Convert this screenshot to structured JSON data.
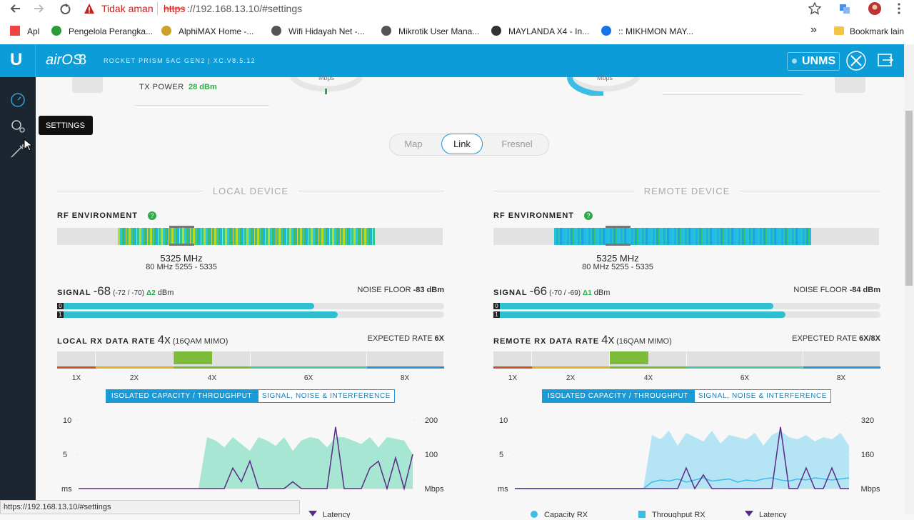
{
  "browser": {
    "security": "Tidak aman",
    "url_scheme": "https",
    "url_rest": "://192.168.13.10/#settings",
    "bookmarks": [
      "Apl",
      "Pengelola Perangka...",
      "AlphiMAX Home -...",
      "Wifi Hidayah Net -...",
      "Mikrotik User Mana...",
      "MAYLANDA X4 - In...",
      ":: MIKHMON MAY..."
    ],
    "other_bookmarks": "Bookmark lain",
    "status_url": "https://192.168.13.10/#settings"
  },
  "header": {
    "brand": "airOS",
    "version": "8",
    "device": "ROCKET PRISM 5AC GEN2 | XC.V8.5.12",
    "unms": "UNMS"
  },
  "sidebar": {
    "tooltip": "SETTINGS"
  },
  "top": {
    "local_unit": "Mbps",
    "tx_power_label": "TX POWER",
    "tx_power": "28 dBm",
    "remote_unit": "Mbps"
  },
  "tabs": {
    "items": [
      "Map",
      "Link",
      "Fresnel"
    ],
    "active": 1
  },
  "panels": [
    {
      "heading": "LOCAL DEVICE",
      "rf_label": "RF ENVIRONMENT",
      "help": "?",
      "frequency": "5325 MHz",
      "channel": "80 MHz 5255 - 5335",
      "signal_label": "SIGNAL",
      "signal": -68,
      "signal_chains": "(-72 / -70)",
      "signal_delta": "Δ2",
      "signal_unit": "dBm",
      "noise_label": "NOISE FLOOR",
      "noise": "-83 dBm",
      "chain_labels": [
        "0",
        "1"
      ],
      "rate_label": "LOCAL RX DATA RATE",
      "rate": "4x",
      "rate_mode": "(16QAM MIMO)",
      "expected_label": "EXPECTED RATE",
      "expected": "6X",
      "rate_scale": [
        "1X",
        "2X",
        "4X",
        "6X",
        "8X"
      ],
      "buttons": [
        "ISOLATED CAPACITY / THROUGHPUT",
        "SIGNAL, NOISE & INTERFERENCE"
      ],
      "chart": {
        "type": "line",
        "ylim": [
          0,
          10
        ],
        "yticks": [
          5,
          10
        ],
        "y_label": "ms",
        "y2lim": [
          0,
          200
        ],
        "y2ticks": [
          100,
          200
        ],
        "y2_label": "Mbps",
        "series": [
          {
            "type": "area",
            "axis": "y2",
            "color": "#a6e6d2",
            "values": [
              0,
              0,
              0,
              0,
              0,
              0,
              0,
              0,
              0,
              0,
              0,
              0,
              0,
              0,
              0,
              150,
              140,
              120,
              150,
              130,
              110,
              150,
              140,
              125,
              150,
              110,
              140,
              150,
              145,
              120,
              150,
              150,
              140,
              130,
              150,
              120,
              150,
              145,
              140,
              100
            ]
          },
          {
            "name": "Latency",
            "type": "line",
            "color": "#5b2a86",
            "values": [
              0,
              0,
              0,
              0,
              0,
              0,
              0,
              0,
              0,
              0,
              0,
              0,
              0,
              0,
              0,
              0,
              0,
              0,
              3,
              1,
              4,
              0,
              0,
              0,
              0,
              1,
              0,
              0,
              0,
              0,
              9,
              0,
              0,
              0,
              3,
              4,
              0,
              4.5,
              0,
              5
            ]
          }
        ]
      }
    },
    {
      "heading": "REMOTE DEVICE",
      "rf_label": "RF ENVIRONMENT",
      "help": "?",
      "frequency": "5325 MHz",
      "channel": "80 MHz 5255 - 5335",
      "signal_label": "SIGNAL",
      "signal": -66,
      "signal_chains": "(-70 / -69)",
      "signal_delta": "Δ1",
      "signal_unit": "dBm",
      "noise_label": "NOISE FLOOR",
      "noise": "-84 dBm",
      "chain_labels": [
        "0",
        "1"
      ],
      "rate_label": "REMOTE RX DATA RATE",
      "rate": "4x",
      "rate_mode": "(16QAM MIMO)",
      "expected_label": "EXPECTED RATE",
      "expected": "6X/8X",
      "rate_scale": [
        "1X",
        "2X",
        "4X",
        "6X",
        "8X"
      ],
      "buttons": [
        "ISOLATED CAPACITY / THROUGHPUT",
        "SIGNAL, NOISE & INTERFERENCE"
      ],
      "chart": {
        "type": "line",
        "ylim": [
          0,
          10
        ],
        "yticks": [
          5,
          10
        ],
        "y_label": "ms",
        "y2lim": [
          0,
          320
        ],
        "y2ticks": [
          160,
          320
        ],
        "y2_label": "Mbps",
        "series": [
          {
            "name": "Capacity RX",
            "type": "area",
            "axis": "y2",
            "color": "#b5e4f5",
            "values": [
              0,
              0,
              0,
              0,
              0,
              0,
              0,
              0,
              0,
              0,
              0,
              0,
              0,
              0,
              0,
              0,
              250,
              230,
              270,
              200,
              260,
              240,
              220,
              270,
              210,
              250,
              240,
              230,
              260,
              200,
              250,
              270,
              240,
              230,
              250,
              220,
              240,
              230,
              260,
              200
            ]
          },
          {
            "name": "Throughput RX",
            "type": "line",
            "axis": "y2",
            "color": "#3dbde6",
            "values": [
              0,
              0,
              0,
              0,
              0,
              0,
              0,
              0,
              0,
              0,
              0,
              0,
              0,
              0,
              0,
              0,
              30,
              40,
              35,
              45,
              30,
              40,
              50,
              35,
              40,
              45,
              30,
              40,
              35,
              45,
              50,
              40,
              35,
              45,
              40,
              50,
              45,
              40,
              45,
              50
            ]
          },
          {
            "name": "Latency",
            "type": "line",
            "color": "#5b2a86",
            "values": [
              0,
              0,
              0,
              0,
              0,
              0,
              0,
              0,
              0,
              0,
              0,
              0,
              0,
              0,
              0,
              0,
              0,
              0,
              0,
              0,
              3,
              0,
              2,
              0,
              0,
              0,
              0,
              0,
              0,
              0,
              0,
              9,
              0,
              0,
              3,
              0,
              0,
              3,
              0,
              0
            ]
          }
        ]
      }
    }
  ]
}
